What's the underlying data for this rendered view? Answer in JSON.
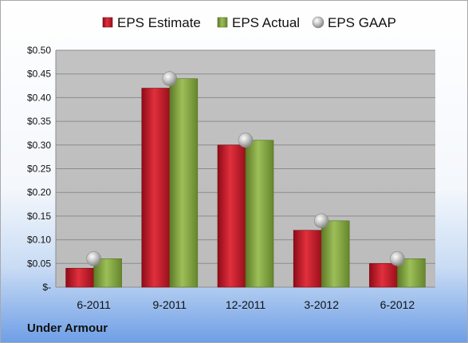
{
  "company": "Under Armour",
  "chart_data": {
    "type": "bar",
    "categories": [
      "6-2011",
      "9-2011",
      "12-2011",
      "3-2012",
      "6-2012"
    ],
    "series": [
      {
        "name": "EPS Estimate",
        "kind": "bar",
        "color": "#c8102e",
        "values": [
          0.04,
          0.42,
          0.3,
          0.12,
          0.05
        ]
      },
      {
        "name": "EPS Actual",
        "kind": "bar",
        "color": "#7ea23c",
        "values": [
          0.06,
          0.44,
          0.31,
          0.14,
          0.06
        ]
      },
      {
        "name": "EPS GAAP",
        "kind": "marker",
        "color": "#a6a6a6",
        "values": [
          0.06,
          0.44,
          0.31,
          0.14,
          0.06
        ]
      }
    ],
    "y_ticks": [
      "$-",
      "$0.05",
      "$0.10",
      "$0.15",
      "$0.20",
      "$0.25",
      "$0.30",
      "$0.35",
      "$0.40",
      "$0.45",
      "$0.50"
    ],
    "ylim": [
      0,
      0.5
    ],
    "grid": true,
    "legend_position": "top",
    "plot_background": "#c0c0c0"
  }
}
